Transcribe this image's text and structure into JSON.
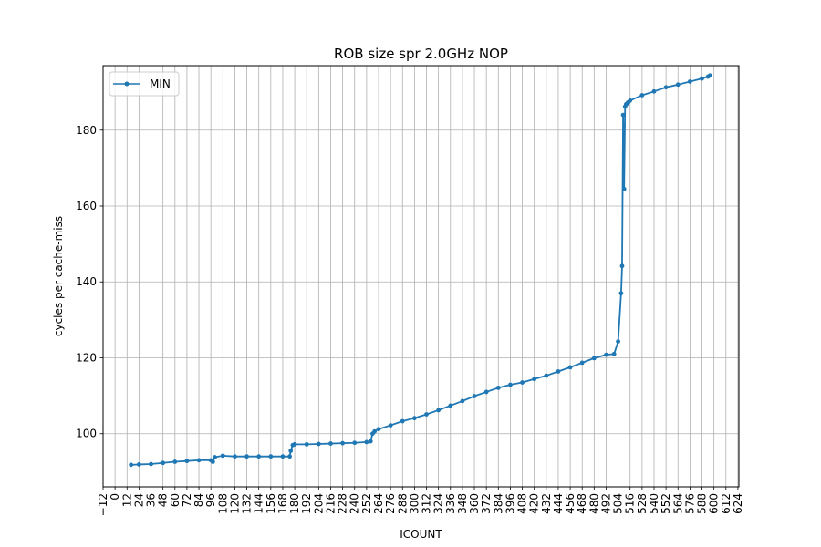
{
  "chart_data": {
    "type": "line",
    "title": "ROB size spr 2.0GHz  NOP",
    "xlabel": "ICOUNT",
    "ylabel": "cycles per cache-miss",
    "xlim": [
      -12,
      625
    ],
    "ylim": [
      86,
      197
    ],
    "xticks": [
      -12,
      0,
      12,
      24,
      36,
      48,
      60,
      72,
      84,
      96,
      108,
      120,
      132,
      144,
      156,
      168,
      180,
      192,
      204,
      216,
      228,
      240,
      252,
      264,
      276,
      288,
      300,
      312,
      324,
      336,
      348,
      360,
      372,
      384,
      396,
      408,
      420,
      432,
      444,
      456,
      468,
      480,
      492,
      504,
      516,
      528,
      540,
      552,
      564,
      576,
      588,
      600,
      612,
      624
    ],
    "yticks": [
      100,
      120,
      140,
      160,
      180
    ],
    "grid": true,
    "legend_position": "upper-left",
    "color": "#1f77b4",
    "series": [
      {
        "name": "MIN",
        "x": [
          16,
          24,
          36,
          48,
          60,
          72,
          84,
          96,
          98,
          100,
          108,
          120,
          132,
          144,
          156,
          168,
          175,
          176,
          178,
          180,
          192,
          204,
          216,
          228,
          240,
          252,
          256,
          258,
          260,
          264,
          276,
          288,
          300,
          312,
          324,
          336,
          348,
          360,
          372,
          384,
          396,
          408,
          420,
          432,
          444,
          456,
          468,
          480,
          492,
          500,
          504,
          507,
          508,
          509,
          510,
          511,
          512,
          513,
          514,
          516,
          528,
          540,
          552,
          564,
          576,
          588,
          594,
          596
        ],
        "y": [
          91.8,
          91.9,
          92.0,
          92.3,
          92.6,
          92.8,
          93.0,
          93.0,
          92.6,
          93.8,
          94.2,
          94.0,
          94.0,
          94.0,
          94.0,
          94.0,
          94.0,
          95.5,
          97.0,
          97.2,
          97.2,
          97.3,
          97.4,
          97.5,
          97.6,
          97.8,
          98.0,
          100.0,
          100.6,
          101.2,
          102.2,
          103.3,
          104.1,
          105.1,
          106.2,
          107.4,
          108.6,
          109.9,
          111.0,
          112.1,
          112.9,
          113.5,
          114.4,
          115.3,
          116.4,
          117.5,
          118.7,
          119.9,
          120.8,
          121.0,
          124.3,
          137.0,
          144.2,
          184.0,
          164.5,
          186.2,
          186.8,
          187.0,
          187.3,
          187.8,
          189.2,
          190.2,
          191.3,
          192.0,
          192.8,
          193.6,
          194.1,
          194.4
        ]
      }
    ]
  }
}
